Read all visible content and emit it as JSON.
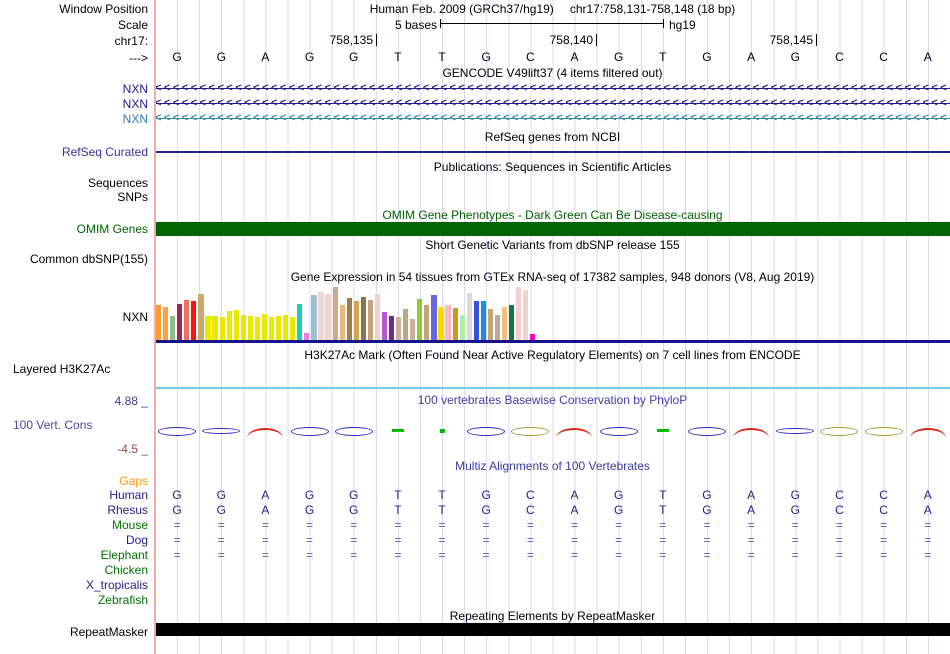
{
  "header": {
    "window_position_label": "Window Position",
    "assembly": "Human Feb. 2009 (GRCh37/hg19)",
    "range": "chr17:758,131-758,148 (18 bp)",
    "scale_label": "Scale",
    "scale_text": "5 bases",
    "scale_genome": "hg19",
    "chrom_label": "chr17:",
    "strand_label": "--->",
    "ruler_ticks": [
      {
        "label": "758,135",
        "x": 221
      },
      {
        "label": "758,140",
        "x": 441
      },
      {
        "label": "758,145",
        "x": 661
      }
    ]
  },
  "sequence": [
    "G",
    "G",
    "A",
    "G",
    "G",
    "T",
    "T",
    "G",
    "C",
    "A",
    "G",
    "T",
    "G",
    "A",
    "G",
    "C",
    "C",
    "A"
  ],
  "gencode": {
    "title": "GENCODE V49lift37 (4 items filtered out)",
    "arrow_char": "<",
    "items": [
      {
        "label": "NXN",
        "label_color": "#1b1b8b",
        "arrow_color": "#1b1b8b"
      },
      {
        "label": "NXN",
        "label_color": "#1b1b8b",
        "arrow_color": "#1b1b8b"
      },
      {
        "label": "NXN",
        "label_color": "#2d7bb8",
        "arrow_color": "#2e86a8"
      }
    ]
  },
  "refseq": {
    "title": "RefSeq genes from NCBI",
    "label": "RefSeq Curated",
    "label_color": "#3333a0",
    "line_color": "#22228b"
  },
  "publications": {
    "title": "Publications: Sequences in Scientific Articles",
    "row1_label": "Sequences",
    "row2_label": "SNPs"
  },
  "omim": {
    "title": "OMIM Gene Phenotypes - Dark Green Can Be Disease-causing",
    "label": "OMIM Genes",
    "color": "#006400"
  },
  "dbsnp": {
    "title": "Short Genetic Variants from dbSNP release 155",
    "label": "Common dbSNP(155)"
  },
  "gtex": {
    "label": "NXN",
    "baseline_color": "#14148c"
  },
  "chart_data": {
    "type": "bar",
    "title": "Gene Expression in 54 tissues from GTEx RNA-seq of 17382 samples, 948 donors (V8, Aug 2019)",
    "gene": "NXN",
    "n": 54,
    "ylim": [
      0,
      1
    ],
    "bars": [
      {
        "color": "#FF9933",
        "h": 0.63
      },
      {
        "color": "#FFA040",
        "h": 0.6
      },
      {
        "color": "#8FBC8F",
        "h": 0.44
      },
      {
        "color": "#982B55",
        "h": 0.65
      },
      {
        "color": "#F26D5E",
        "h": 0.73
      },
      {
        "color": "#FF1111",
        "h": 0.7
      },
      {
        "color": "#C9A96A",
        "h": 0.84
      },
      {
        "color": "#E8E800",
        "h": 0.43
      },
      {
        "color": "#E8E800",
        "h": 0.43
      },
      {
        "color": "#E8E800",
        "h": 0.41
      },
      {
        "color": "#E8E800",
        "h": 0.52
      },
      {
        "color": "#E8E800",
        "h": 0.55
      },
      {
        "color": "#E8E800",
        "h": 0.45
      },
      {
        "color": "#E8E800",
        "h": 0.43
      },
      {
        "color": "#E8E800",
        "h": 0.42
      },
      {
        "color": "#E8E800",
        "h": 0.47
      },
      {
        "color": "#E8E800",
        "h": 0.41
      },
      {
        "color": "#E8E800",
        "h": 0.43
      },
      {
        "color": "#E8E800",
        "h": 0.46
      },
      {
        "color": "#E8E800",
        "h": 0.41
      },
      {
        "color": "#22CCBB",
        "h": 0.66
      },
      {
        "color": "#EE7FE0",
        "h": 0.12
      },
      {
        "color": "#9FBED1",
        "h": 0.81
      },
      {
        "color": "#F0D2CF",
        "h": 0.87
      },
      {
        "color": "#F0D2CF",
        "h": 0.84
      },
      {
        "color": "#C9AD88",
        "h": 0.96
      },
      {
        "color": "#ECB77E",
        "h": 0.64
      },
      {
        "color": "#9F7B4F",
        "h": 0.76
      },
      {
        "color": "#D2A24C",
        "h": 0.7
      },
      {
        "color": "#8B7355",
        "h": 0.78
      },
      {
        "color": "#C3A57C",
        "h": 0.72
      },
      {
        "color": "#F4CFCF",
        "h": 0.84
      },
      {
        "color": "#BA55D3",
        "h": 0.5
      },
      {
        "color": "#6A2D8F",
        "h": 0.44
      },
      {
        "color": "#C9B299",
        "h": 0.42
      },
      {
        "color": "#C3A57C",
        "h": 0.56
      },
      {
        "color": "#C9B299",
        "h": 0.38
      },
      {
        "color": "#8FCC33",
        "h": 0.74
      },
      {
        "color": "#C3A57C",
        "h": 0.64
      },
      {
        "color": "#6666E0",
        "h": 0.82
      },
      {
        "color": "#FFD700",
        "h": 0.6
      },
      {
        "color": "#FFB6C1",
        "h": 0.64
      },
      {
        "color": "#CC9922",
        "h": 0.58
      },
      {
        "color": "#AAEFAA",
        "h": 0.46
      },
      {
        "color": "#D9D9D9",
        "h": 0.86
      },
      {
        "color": "#3355DD",
        "h": 0.7
      },
      {
        "color": "#2288EE",
        "h": 0.7
      },
      {
        "color": "#C3A57C",
        "h": 0.56
      },
      {
        "color": "#BBAA99",
        "h": 0.46
      },
      {
        "color": "#F0C080",
        "h": 0.6
      },
      {
        "color": "#117744",
        "h": 0.64
      },
      {
        "color": "#F4CFCF",
        "h": 0.96
      },
      {
        "color": "#F0D2CF",
        "h": 0.9
      },
      {
        "color": "#FF00CC",
        "h": 0.1
      }
    ]
  },
  "h3k27ac": {
    "title": "H3K27Ac Mark (Often Found Near Active Regulatory Elements) on 7 cell lines from ENCODE",
    "label": "Layered H3K27Ac",
    "line_color": "#7ec8e8"
  },
  "conservation": {
    "title": "100 vertebrates Basewise Conservation by PhyloP",
    "title_color": "#4040a8",
    "label": "100 Vert. Cons",
    "label_color": "#4848a8",
    "max_label": "4.88 _",
    "max_color": "#3c3c9c",
    "min_label": "-4.5 _",
    "min_color": "#9b4444",
    "shapes": [
      {
        "shape": "lens",
        "color": "#2222cc"
      },
      {
        "shape": "thin",
        "color": "#2222cc"
      },
      {
        "shape": "arc",
        "color": "#dd2211"
      },
      {
        "shape": "lens",
        "color": "#2222cc"
      },
      {
        "shape": "lens",
        "color": "#2222cc"
      },
      {
        "shape": "dash",
        "color": "#00bb00"
      },
      {
        "shape": "dot",
        "color": "#00bb00"
      },
      {
        "shape": "lens",
        "color": "#2222cc"
      },
      {
        "shape": "lens",
        "color": "#99992a"
      },
      {
        "shape": "arc",
        "color": "#dd2211"
      },
      {
        "shape": "lens",
        "color": "#2222cc"
      },
      {
        "shape": "dash",
        "color": "#00bb00"
      },
      {
        "shape": "lens",
        "color": "#2222cc"
      },
      {
        "shape": "arc",
        "color": "#dd2211"
      },
      {
        "shape": "thin",
        "color": "#2222cc"
      },
      {
        "shape": "lens",
        "color": "#99992a"
      },
      {
        "shape": "lens",
        "color": "#99992a"
      },
      {
        "shape": "arc",
        "color": "#dd2211"
      }
    ]
  },
  "multiz": {
    "title": "Multiz Alignments of 100 Vertebrates",
    "title_color": "#3a3aa0",
    "eq_char": "=",
    "letter_color": "#22228b",
    "eq_color": "#5a5ab8",
    "rows": [
      {
        "label": "Gaps",
        "color": "#ff9900",
        "content": "none"
      },
      {
        "label": "Human",
        "color": "#22228b",
        "content": "seq"
      },
      {
        "label": "Rhesus",
        "color": "#22228b",
        "content": "seq"
      },
      {
        "label": "Mouse",
        "color": "#007200",
        "content": "eq"
      },
      {
        "label": "Dog",
        "color": "#22228b",
        "content": "eq"
      },
      {
        "label": "Elephant",
        "color": "#007200",
        "content": "eq"
      },
      {
        "label": "Chicken",
        "color": "#007200",
        "content": "none"
      },
      {
        "label": "X_tropicalis",
        "color": "#22228b",
        "content": "none"
      },
      {
        "label": "Zebrafish",
        "color": "#007200",
        "content": "none"
      }
    ]
  },
  "repeatmasker": {
    "title": "Repeating Elements by RepeatMasker",
    "label": "RepeatMasker",
    "color": "#000000"
  }
}
